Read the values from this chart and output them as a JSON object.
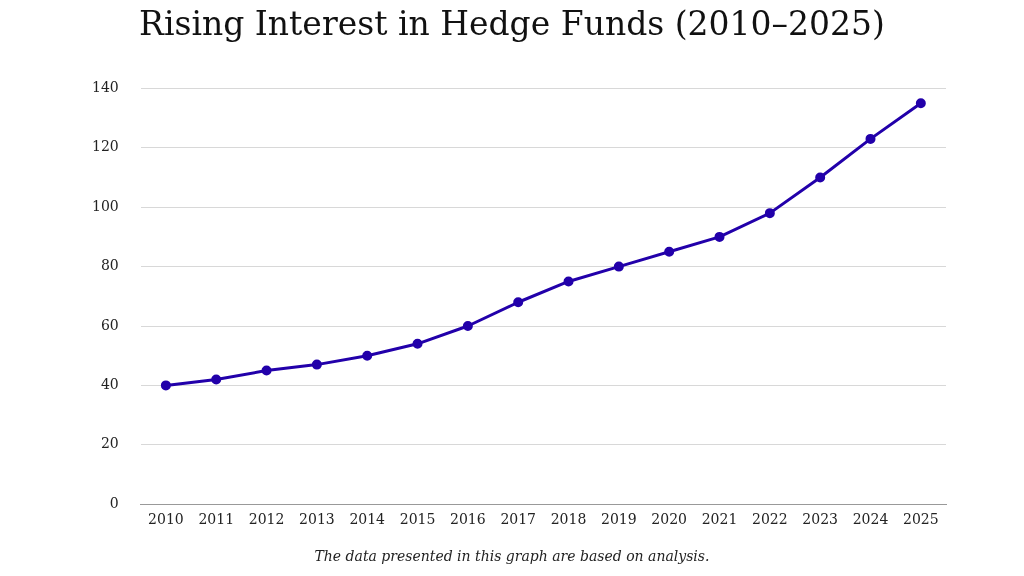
{
  "chart_data": {
    "type": "line",
    "title": "Rising Interest in Hedge Funds (2010–2025)",
    "categories": [
      "2010",
      "2011",
      "2012",
      "2013",
      "2014",
      "2015",
      "2016",
      "2017",
      "2018",
      "2019",
      "2020",
      "2021",
      "2022",
      "2023",
      "2024",
      "2025"
    ],
    "series": [
      {
        "color": "#2200aa",
        "values": [
          40,
          42,
          45,
          47,
          50,
          54,
          60,
          68,
          75,
          80,
          85,
          90,
          98,
          110,
          123,
          135
        ]
      }
    ],
    "ylim": [
      0,
      140
    ],
    "yticks": [
      0,
      20,
      40,
      60,
      80,
      100,
      120,
      140
    ],
    "grid": "y",
    "legend": false,
    "marker": "circle",
    "line_style": "solid",
    "annotations": [
      "The data presented in this graph are based on analysis."
    ]
  }
}
